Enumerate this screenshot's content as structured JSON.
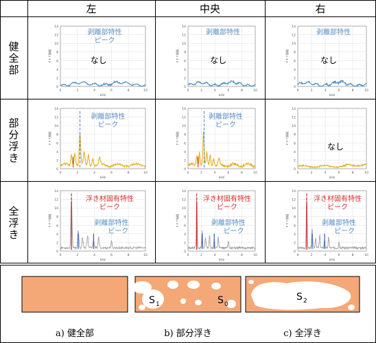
{
  "headers": [
    "左",
    "中央",
    "右"
  ],
  "rows": [
    {
      "label": "健全部"
    },
    {
      "label": "部分浮き"
    },
    {
      "label": "全浮き"
    }
  ],
  "axis": {
    "ylabel": "ＦＦＴ振幅",
    "xlabel": "kHz",
    "xticks": [
      "0",
      "2",
      "4",
      "6",
      "8",
      "10"
    ],
    "yticks": [
      "0",
      "2",
      "4",
      "6",
      "8",
      "10",
      "12",
      "14"
    ]
  },
  "annotations": {
    "peel": "剥離部特性\nピーク",
    "float": "浮き材固有特性\nピーク",
    "none": "なし"
  },
  "colors": {
    "blue": "#4a90c8",
    "yellow": "#e8b020",
    "gray": "#a0a0a8",
    "red": "#d02020",
    "peel_text": "#5a8fc8",
    "float_text": "#d83030",
    "salmon": "#f4a878"
  },
  "chart_data": [
    {
      "type": "line",
      "row": "健全部",
      "col": "左",
      "ylim": [
        0,
        14
      ],
      "xlim": [
        0,
        10
      ],
      "color": "blue",
      "peak_lines": [],
      "annotation": "none"
    },
    {
      "type": "line",
      "row": "健全部",
      "col": "中央",
      "ylim": [
        0,
        14
      ],
      "xlim": [
        0,
        10
      ],
      "color": "blue",
      "peak_lines": [],
      "annotation": "none"
    },
    {
      "type": "line",
      "row": "健全部",
      "col": "右",
      "ylim": [
        0,
        14
      ],
      "xlim": [
        0,
        10
      ],
      "color": "blue",
      "peak_lines": [],
      "annotation": "none"
    },
    {
      "type": "line",
      "row": "部分浮き",
      "col": "左",
      "ylim": [
        0,
        14
      ],
      "xlim": [
        0,
        10
      ],
      "color": "yellow",
      "peak_lines": [
        {
          "x": 2.3,
          "type": "peel"
        }
      ],
      "annotation": "peel"
    },
    {
      "type": "line",
      "row": "部分浮き",
      "col": "中央",
      "ylim": [
        0,
        14
      ],
      "xlim": [
        0,
        10
      ],
      "color": "yellow",
      "peak_lines": [
        {
          "x": 2.4,
          "type": "peel"
        }
      ],
      "annotation": "peel"
    },
    {
      "type": "line",
      "row": "部分浮き",
      "col": "右",
      "ylim": [
        0,
        14
      ],
      "xlim": [
        0,
        10
      ],
      "color": "yellow",
      "peak_lines": [],
      "annotation": "none"
    },
    {
      "type": "line",
      "row": "全浮き",
      "col": "左",
      "ylim": [
        0,
        14
      ],
      "xlim": [
        0,
        10
      ],
      "color": "gray",
      "peak_lines": [
        {
          "x": 1.3,
          "type": "float"
        }
      ],
      "annotation": "both"
    },
    {
      "type": "line",
      "row": "全浮き",
      "col": "中央",
      "ylim": [
        0,
        14
      ],
      "xlim": [
        0,
        10
      ],
      "color": "gray",
      "peak_lines": [
        {
          "x": 1.3,
          "type": "float"
        }
      ],
      "annotation": "both"
    },
    {
      "type": "line",
      "row": "全浮き",
      "col": "右",
      "ylim": [
        0,
        14
      ],
      "xlim": [
        0,
        10
      ],
      "color": "gray",
      "peak_lines": [
        {
          "x": 1.3,
          "type": "float"
        }
      ],
      "annotation": "both"
    }
  ],
  "diagrams": [
    {
      "caption": "a)  健全部",
      "labels": []
    },
    {
      "caption": "b)  部分浮き",
      "labels": [
        "S1",
        "S0"
      ]
    },
    {
      "caption": "c)  全浮き",
      "labels": [
        "S2"
      ]
    }
  ]
}
